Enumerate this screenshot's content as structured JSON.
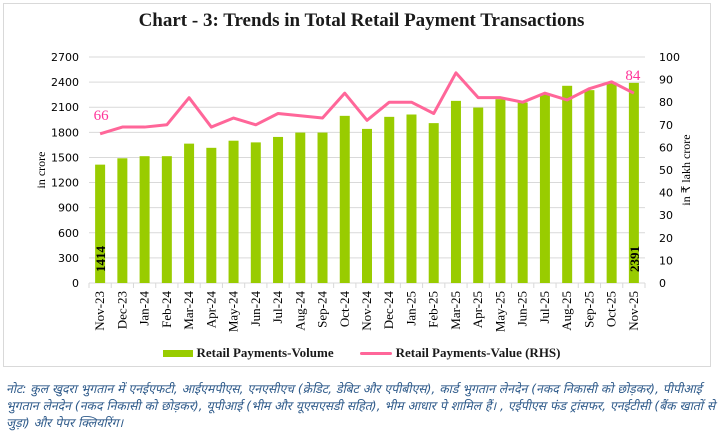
{
  "title": "Chart - 3: Trends in Total Retail Payment Transactions",
  "left_axis": {
    "label": "in crore",
    "ticks": [
      "0",
      "300",
      "600",
      "900",
      "1200",
      "1500",
      "1800",
      "2100",
      "2400",
      "2700"
    ],
    "min": 0,
    "max": 2700
  },
  "right_axis": {
    "label": "in ₹ lakh crore",
    "ticks": [
      "0",
      "10",
      "20",
      "30",
      "40",
      "50",
      "60",
      "70",
      "80",
      "90",
      "100"
    ],
    "min": 0,
    "max": 100
  },
  "legend": {
    "volume": "Retail Payments-Volume",
    "value": "Retail Payments-Value (RHS)"
  },
  "colors": {
    "bar": "#99cc00",
    "line": "#ff6699",
    "label_line": "#ff3399",
    "grid": "#d9d9d9"
  },
  "data_labels": {
    "first_bar": "1414",
    "last_bar": "2391",
    "first_line": "66",
    "last_line": "84"
  },
  "note": "नोट: कुल खुदरा भुगतान में एनईएफटी, आईएमपीएस, एनएसीएच (क्रेडिट, डेबिट और एपीबीएस), कार्ड भुगतान लेनदेन (नकद निकासी को छोड़कर), पीपीआई भुगतान लेनदेन (नकद निकासी को छोड़कर), यूपीआई (भीम और यूएसएसडी सहित), भीम आधार पे शामिल हैं। , एईपीएस फंड ट्रांसफर, एनईटीसी (बैंक खातों से जुड़ा) और पेपर क्लियरिंग।",
  "chart_data": {
    "type": "bar",
    "title": "Chart - 3: Trends in Total Retail Payment Transactions",
    "categories": [
      "Nov-23",
      "Dec-23",
      "Jan-24",
      "Feb-24",
      "Mar-24",
      "Apr-24",
      "May-24",
      "Jun-24",
      "Jul-24",
      "Aug-24",
      "Sep-24",
      "Oct-24",
      "Nov-24",
      "Dec-24",
      "Jan-25",
      "Feb-25",
      "Mar-25",
      "Apr-25",
      "May-25",
      "Jun-25",
      "Jul-25",
      "Aug-25",
      "Sep-25",
      "Oct-25",
      "Nov-25"
    ],
    "series": [
      {
        "name": "Retail Payments-Volume",
        "type": "bar",
        "axis": "left",
        "values": [
          1414,
          1490,
          1515,
          1515,
          1665,
          1615,
          1700,
          1680,
          1745,
          1797,
          1797,
          1997,
          1841,
          1985,
          2013,
          1910,
          2176,
          2096,
          2196,
          2156,
          2264,
          2356,
          2304,
          2388,
          2391
        ]
      },
      {
        "name": "Retail Payments-Value (RHS)",
        "type": "line",
        "axis": "right",
        "values": [
          66,
          69,
          69,
          70,
          82,
          69,
          73,
          70,
          75,
          74,
          73,
          84,
          72,
          80,
          80,
          75,
          93,
          82,
          82,
          80,
          84,
          81,
          86,
          89,
          84
        ]
      }
    ],
    "xlabel": "",
    "ylabel": "in crore",
    "y2label": "in ₹ lakh crore",
    "ylim": [
      0,
      2700
    ],
    "y2lim": [
      0,
      100
    ],
    "grid": true,
    "legend_position": "bottom"
  }
}
